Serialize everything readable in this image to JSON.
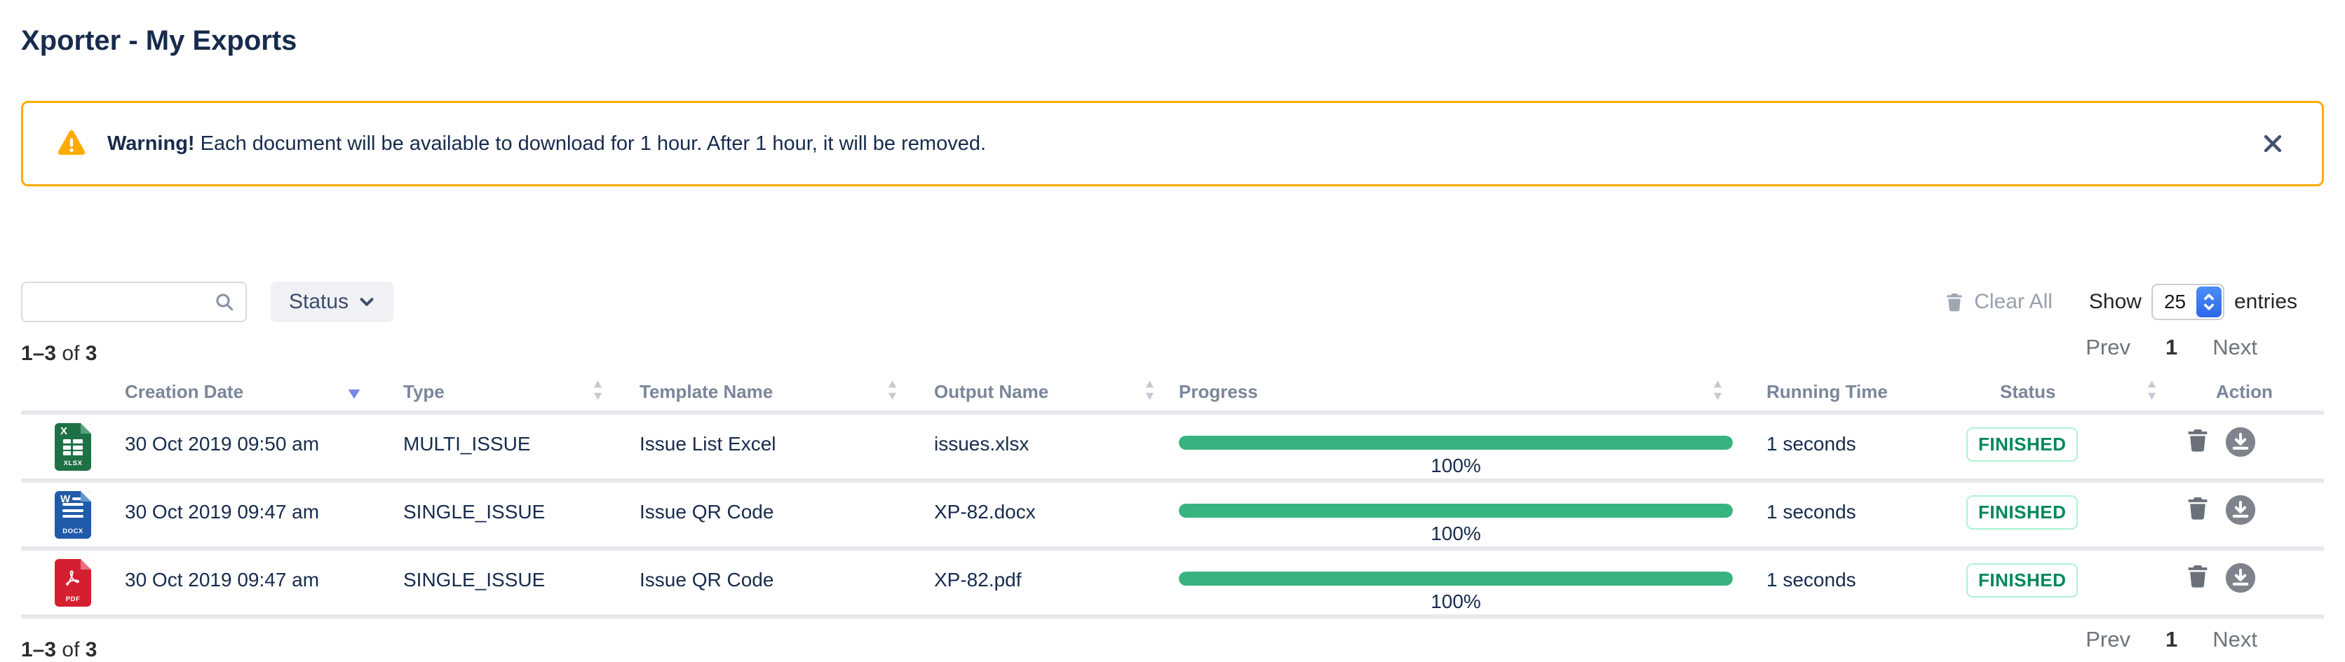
{
  "page": {
    "title": "Xporter - My Exports"
  },
  "banner": {
    "label": "Warning!",
    "message": "Each document will be available to download for 1 hour. After 1 hour, it will be removed."
  },
  "toolbar": {
    "search_placeholder": "",
    "status": "Status",
    "clear_all": "Clear All",
    "show": "Show",
    "page_size": "25",
    "entries": "entries"
  },
  "pagination": {
    "range": "1–3",
    "of": "of",
    "total": "3",
    "prev": "Prev",
    "current_page": "1",
    "next": "Next"
  },
  "table": {
    "sort": {
      "column": "creation_date",
      "direction": "desc"
    },
    "headers": {
      "creation_date": "Creation Date",
      "type": "Type",
      "template_name": "Template Name",
      "output_name": "Output Name",
      "progress": "Progress",
      "running_time": "Running Time",
      "status": "Status",
      "action": "Action"
    },
    "rows": [
      {
        "kind": "xlsx",
        "file_letter": "X",
        "file_ext": "XLSX",
        "creation_date": "30 Oct 2019 09:50 am",
        "type": "MULTI_ISSUE",
        "template_name": "Issue List Excel",
        "output_name": "issues.xlsx",
        "progress_percent": 100,
        "progress_label": "100%",
        "running_time": "1 seconds",
        "status": "FINISHED"
      },
      {
        "kind": "docx",
        "file_letter": "W",
        "file_ext": "DOCX",
        "creation_date": "30 Oct 2019 09:47 am",
        "type": "SINGLE_ISSUE",
        "template_name": "Issue QR Code",
        "output_name": "XP-82.docx",
        "progress_percent": 100,
        "progress_label": "100%",
        "running_time": "1 seconds",
        "status": "FINISHED"
      },
      {
        "kind": "pdf",
        "file_letter": "",
        "file_ext": "PDF",
        "creation_date": "30 Oct 2019 09:47 am",
        "type": "SINGLE_ISSUE",
        "template_name": "Issue QR Code",
        "output_name": "XP-82.pdf",
        "progress_percent": 100,
        "progress_label": "100%",
        "running_time": "1 seconds",
        "status": "FINISHED"
      }
    ]
  },
  "icons": {
    "warning": "triangle-exclamation",
    "close": "x-mark",
    "search": "magnifier",
    "status_dropdown": "chevron-down",
    "clear_all": "trash",
    "page_size_stepper": "up-down-chevrons",
    "sort_active": "triangle-down-filled",
    "sort_inactive": "triangles-up-down",
    "delete_action": "trash",
    "download_action": "download-circle"
  },
  "colors": {
    "accent_green": "#36B37E",
    "warning_orange": "#FFAB00",
    "status_green": "#00875A",
    "status_border": "#ABF5D1",
    "title_navy": "#172B4D",
    "sort_active": "#7A87E8"
  }
}
